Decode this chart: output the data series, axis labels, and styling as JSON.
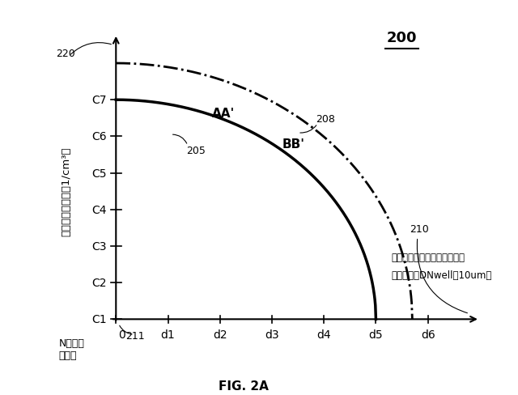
{
  "title": "200",
  "fig_label": "FIG. 2A",
  "ylabel": "ドーパント濃度（1/cm³）",
  "xlabel_annotation_line1": "表面から基板への縦方向距離",
  "xlabel_annotation_line2": "（深さ）（DNwell～10um）",
  "xlabel_ref": "210",
  "ylabel_ref": "220",
  "origin_ref": "211",
  "curve_AA_ref": "205",
  "curve_BB_ref": "208",
  "curve_AA_label": "AA'",
  "curve_BB_label": "BB'",
  "x_ticks": [
    "0",
    "d1",
    "d2",
    "d3",
    "d4",
    "d5",
    "d6"
  ],
  "y_ticks": [
    "C1",
    "C2",
    "C3",
    "C4",
    "C5",
    "C6",
    "C7"
  ],
  "background_color": "#ffffff",
  "curve_AA_color": "#000000",
  "curve_BB_color": "#000000",
  "text_color": "#000000",
  "nwell_line1": "Nウェル",
  "nwell_line2": "の表面",
  "figsize": [
    6.4,
    4.89
  ],
  "dpi": 100
}
